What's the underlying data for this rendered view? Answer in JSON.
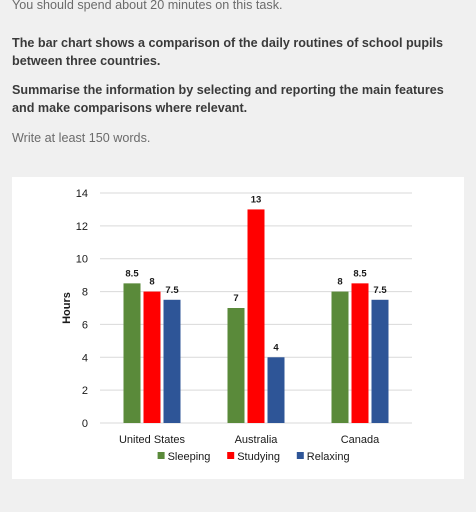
{
  "task": {
    "time_note": "You should spend about 20 minutes on this task.",
    "prompt_1": "The bar chart shows a comparison of the daily routines of school pupils between three countries.",
    "prompt_2": "Summarise the information by selecting and reporting the main features and make comparisons where relevant.",
    "word_count": "Write at least 150 words."
  },
  "chart_data": {
    "type": "bar",
    "title": "",
    "xlabel": "",
    "ylabel": "Hours",
    "ylim": [
      0,
      14
    ],
    "yticks": [
      0,
      2,
      4,
      6,
      8,
      10,
      12,
      14
    ],
    "grid": true,
    "legend_position": "bottom",
    "categories": [
      "United States",
      "Australia",
      "Canada"
    ],
    "series": [
      {
        "name": "Sleeping",
        "values": [
          8.5,
          7,
          8
        ],
        "labels": [
          "8.5",
          "7",
          "8"
        ],
        "color": "#5a8a3a"
      },
      {
        "name": "Studying",
        "values": [
          8,
          13,
          8.5
        ],
        "labels": [
          "8",
          "13",
          "8.5"
        ],
        "color": "#ff0000"
      },
      {
        "name": "Relaxing",
        "values": [
          7.5,
          4,
          7.5
        ],
        "labels": [
          "7.5",
          "4",
          "7.5"
        ],
        "color": "#2e5597"
      }
    ]
  }
}
